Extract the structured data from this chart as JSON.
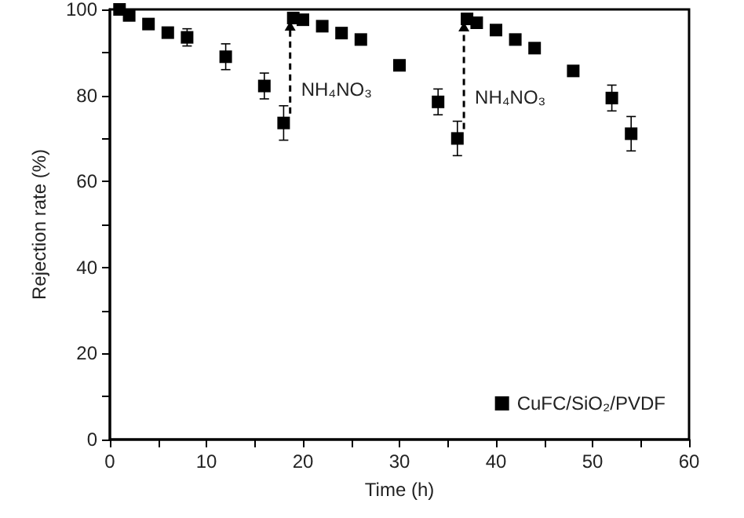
{
  "chart_data": {
    "type": "scatter",
    "xlabel": "Time (h)",
    "ylabel": "Rejection rate (%)",
    "x": [
      1,
      2,
      4,
      6,
      8,
      12,
      16,
      18,
      19,
      20,
      22,
      24,
      26,
      30,
      34,
      36,
      37,
      38,
      40,
      42,
      44,
      48,
      52,
      54
    ],
    "series": [
      {
        "name": "CuFC/SiO₂/PVDF",
        "color": "#000000",
        "values": [
          100,
          98.6,
          96.6,
          94.6,
          93.5,
          89,
          82.2,
          73.6,
          98,
          97.6,
          96.1,
          94.5,
          93,
          87,
          78.5,
          70,
          97.8,
          96.9,
          95.2,
          93,
          91,
          85.7,
          79.4,
          71.1
        ],
        "errors": [
          null,
          null,
          null,
          null,
          2,
          3,
          3,
          4,
          null,
          null,
          null,
          null,
          1,
          1,
          3,
          4,
          null,
          null,
          null,
          null,
          1,
          1,
          3,
          4
        ]
      }
    ],
    "xlim": [
      0,
      60
    ],
    "xticks": [
      0,
      10,
      20,
      30,
      40,
      50,
      60
    ],
    "ylim": [
      0,
      100
    ],
    "yticks": [
      0,
      20,
      40,
      60,
      80,
      100
    ],
    "marker": "square",
    "grid": false,
    "legend": "bottom right",
    "annotations": [
      {
        "text": "NH₄NO₃",
        "x": 19,
        "y": 98
      },
      {
        "text": "NH₄NO₃",
        "x": 37,
        "y": 97.8
      }
    ]
  }
}
